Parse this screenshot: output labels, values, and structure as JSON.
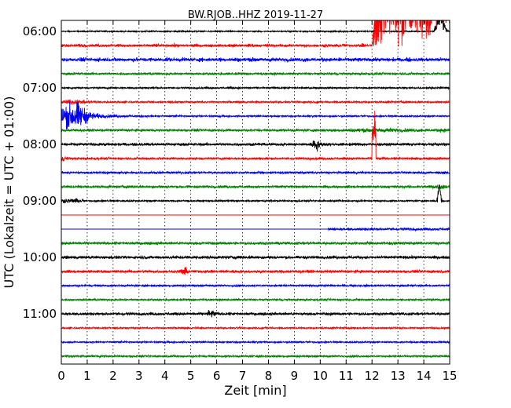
{
  "chart_data": {
    "type": "line",
    "title": "BW.RJOB..HHZ 2019-11-27",
    "xlabel": "Zeit  [min]",
    "ylabel": "UTC (Lokalzeit = UTC + 01:00)",
    "xlim": [
      0,
      15
    ],
    "x_ticks": [
      "0",
      "1",
      "2",
      "3",
      "4",
      "5",
      "6",
      "7",
      "8",
      "9",
      "10",
      "11",
      "12",
      "13",
      "14",
      "15"
    ],
    "y_ticks": [
      "06:00",
      "07:00",
      "08:00",
      "09:00",
      "10:00",
      "11:00"
    ],
    "grid": "vertical dotted",
    "colors": [
      "#000000",
      "#ff0000",
      "#0000ff",
      "#008000"
    ],
    "series": [
      {
        "start": "06:00",
        "base_amp": 1.2
      },
      {
        "start": "06:15",
        "base_amp": 2.0
      },
      {
        "start": "06:30",
        "base_amp": 2.8
      },
      {
        "start": "06:45",
        "base_amp": 2.0
      },
      {
        "start": "07:00",
        "base_amp": 1.6
      },
      {
        "start": "07:15",
        "base_amp": 1.6
      },
      {
        "start": "07:30",
        "base_amp": 1.4
      },
      {
        "start": "07:45",
        "base_amp": 2.2
      },
      {
        "start": "08:00",
        "base_amp": 2.4
      },
      {
        "start": "08:15",
        "base_amp": 2.0
      },
      {
        "start": "08:30",
        "base_amp": 2.0
      },
      {
        "start": "08:45",
        "base_amp": 2.2
      },
      {
        "start": "09:00",
        "base_amp": 1.5
      },
      {
        "start": "09:15",
        "base_amp": 0
      },
      {
        "start": "09:30",
        "base_amp": 0
      },
      {
        "start": "09:45",
        "base_amp": 2.4
      },
      {
        "start": "10:00",
        "base_amp": 2.6
      },
      {
        "start": "10:15",
        "base_amp": 2.4
      },
      {
        "start": "10:30",
        "base_amp": 1.8
      },
      {
        "start": "10:45",
        "base_amp": 1.8
      },
      {
        "start": "11:00",
        "base_amp": 2.4
      },
      {
        "start": "11:15",
        "base_amp": 1.4
      },
      {
        "start": "11:30",
        "base_amp": 1.4
      },
      {
        "start": "11:45",
        "base_amp": 1.8
      }
    ],
    "events": [
      {
        "start": "06:30",
        "x_min": [
          0,
          15
        ],
        "type": "bursts"
      },
      {
        "start": "07:15",
        "x_min": [
          0,
          1.5
        ],
        "type": "large oscillation"
      },
      {
        "start": "08:00",
        "x_min": [
          9.6,
          10.2
        ],
        "type": "burst"
      },
      {
        "start": "09:00",
        "x_min": [
          0,
          0.9
        ],
        "type": "thick segment"
      },
      {
        "start": "09:15",
        "x_min": [
          0,
          15
        ],
        "type": "flat"
      },
      {
        "start": "09:30",
        "x_min": [
          0,
          10.3
        ],
        "type": "flat"
      },
      {
        "start": "10:15",
        "x_min": [
          4.6,
          4.9
        ],
        "type": "burst"
      },
      {
        "start": "11:00",
        "x_min": [
          5.5,
          6.0
        ],
        "type": "burst"
      },
      {
        "start": "06:15",
        "x_min": [
          12.0,
          15
        ],
        "type": "large event"
      }
    ]
  }
}
